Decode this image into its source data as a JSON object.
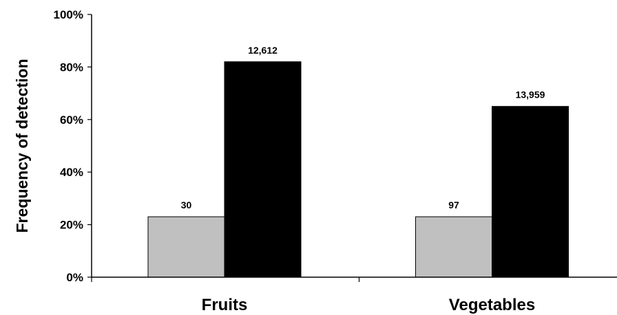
{
  "chart_data": {
    "type": "bar",
    "ylabel": "Frequency of detection",
    "xlabel": "",
    "ylim": [
      0,
      100
    ],
    "y_ticks": [
      "0%",
      "20%",
      "40%",
      "60%",
      "80%",
      "100%"
    ],
    "categories": [
      "Fruits",
      "Vegetables"
    ],
    "series": [
      {
        "color": "#c0c0c0",
        "values": [
          23,
          23
        ],
        "data_labels": [
          "30",
          "97"
        ]
      },
      {
        "color": "#000000",
        "values": [
          82,
          65
        ],
        "data_labels": [
          "12,612",
          "13,959"
        ]
      }
    ],
    "grid": false,
    "legend": "none"
  }
}
